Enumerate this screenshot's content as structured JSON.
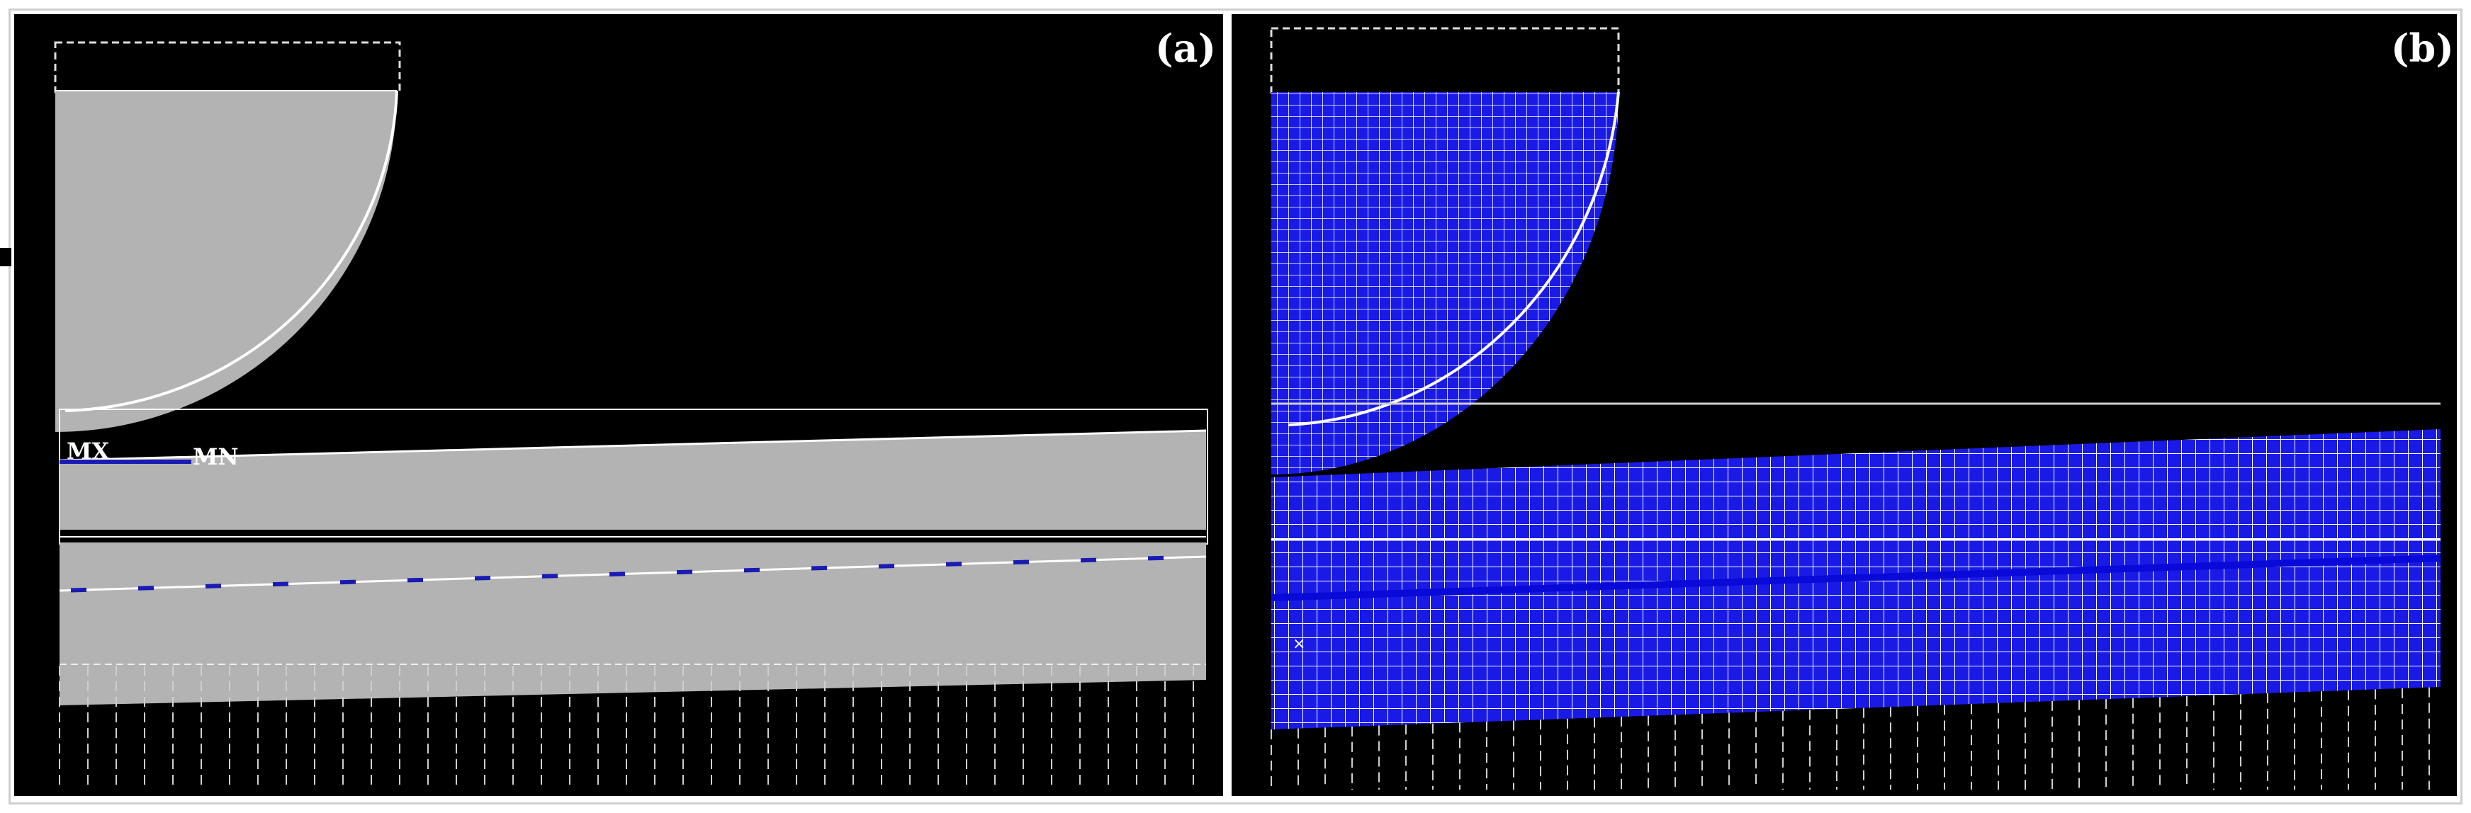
{
  "panels": {
    "a": {
      "label": "(a)",
      "markers": {
        "mx": "MX",
        "mn": "MN"
      }
    },
    "b": {
      "label": "(b)"
    }
  },
  "colors": {
    "background": "#000000",
    "body_fill": "#b3b3b3",
    "mesh_fill": "#1a1ae6",
    "mesh_line": "#ffffff",
    "constraint_line": "#dddddd",
    "stress_marker": "#1a1ab4"
  }
}
